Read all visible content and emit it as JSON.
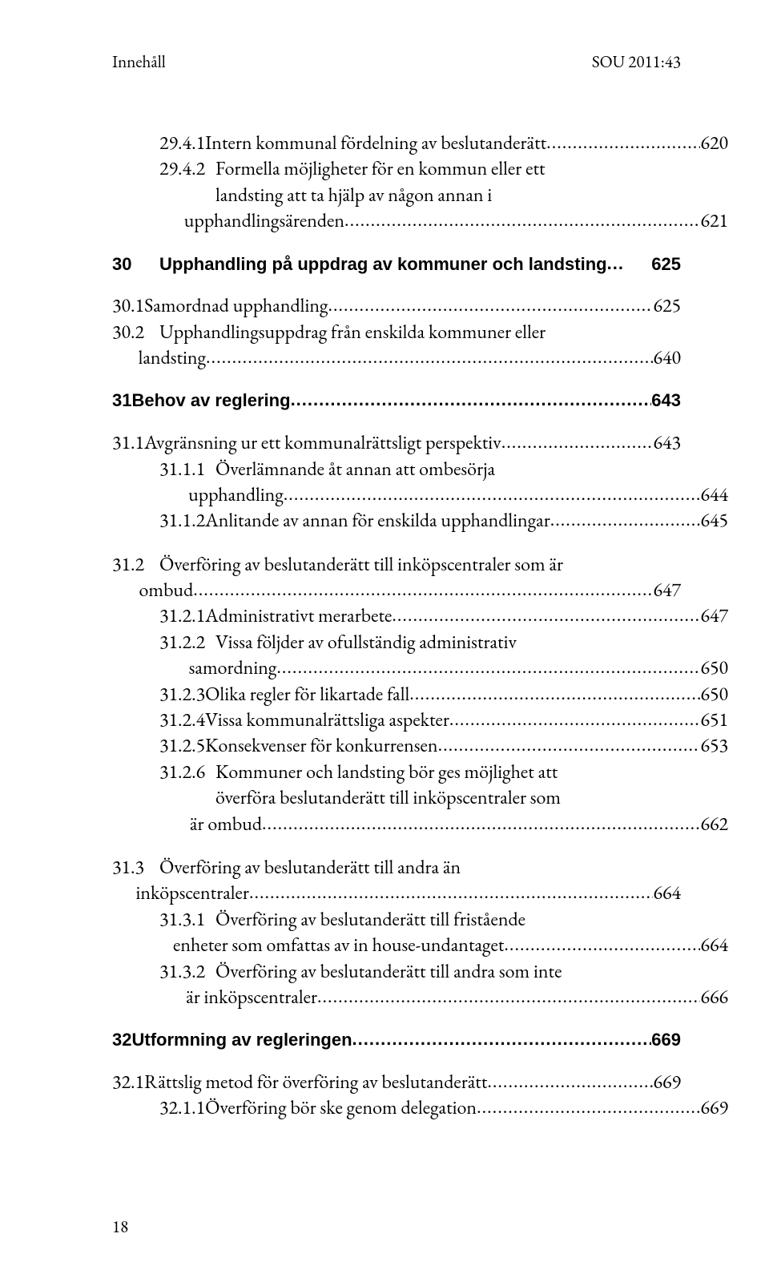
{
  "running_head": {
    "left": "Innehåll",
    "right": "SOU 2011:43"
  },
  "footer_page": "18",
  "leader_dots": "...........................................................................................................................................................",
  "entries": [
    {
      "block": true,
      "rows": [
        {
          "indent": 2,
          "mode": "hanging2",
          "num": "29.4.1",
          "text": "Intern kommunal fördelning av beslutanderätt",
          "page": "620"
        },
        {
          "indent": 2,
          "mode": "hanging2",
          "num": "29.4.2",
          "multi": [
            "Formella möjligheter för en kommun eller ett",
            "landsting att ta hjälp av någon annan i"
          ],
          "last": "upphandlingsärenden",
          "page": "621"
        }
      ]
    },
    {
      "block": true,
      "rows": [
        {
          "indent": 0,
          "bold": true,
          "mode": "hanging",
          "num": "30",
          "text": "Upphandling på uppdrag av kommuner och landsting",
          "page": "625",
          "leader": "..."
        }
      ]
    },
    {
      "block": true,
      "rows": [
        {
          "indent": 0,
          "mode": "hanging",
          "num": "30.1",
          "text": "Samordnad upphandling",
          "page": "625"
        },
        {
          "indent": 0,
          "mode": "hanging",
          "num": "30.2",
          "multi": [
            "Upphandlingsuppdrag från enskilda kommuner eller"
          ],
          "last": "landsting",
          "page": "640"
        }
      ]
    },
    {
      "block": true,
      "rows": [
        {
          "indent": 0,
          "bold": true,
          "mode": "hanging",
          "num": "31",
          "text": "Behov av reglering",
          "page": "643"
        }
      ]
    },
    {
      "block": true,
      "rows": [
        {
          "indent": 0,
          "mode": "hanging",
          "num": "31.1",
          "text": "Avgränsning ur ett kommunalrättsligt perspektiv",
          "page": "643"
        },
        {
          "indent": 2,
          "mode": "hanging2",
          "num": "31.1.1",
          "multi": [
            "Överlämnande åt annan att ombesörja"
          ],
          "last": "upphandling",
          "page": "644"
        },
        {
          "indent": 2,
          "mode": "hanging2",
          "num": "31.1.2",
          "text": "Anlitande av annan för enskilda upphandlingar",
          "page": "645"
        }
      ]
    },
    {
      "block": true,
      "rows": [
        {
          "indent": 0,
          "mode": "hanging",
          "num": "31.2",
          "multi": [
            "Överföring av beslutanderätt till inköpscentraler som är"
          ],
          "last": "ombud",
          "page": "647"
        },
        {
          "indent": 2,
          "mode": "hanging2",
          "num": "31.2.1",
          "text": "Administrativt merarbete",
          "page": "647"
        },
        {
          "indent": 2,
          "mode": "hanging2",
          "num": "31.2.2",
          "multi": [
            "Vissa följder av ofullständig administrativ"
          ],
          "last": "samordning",
          "page": "650"
        },
        {
          "indent": 2,
          "mode": "hanging2",
          "num": "31.2.3",
          "text": "Olika regler för likartade fall",
          "page": "650"
        },
        {
          "indent": 2,
          "mode": "hanging2",
          "num": "31.2.4",
          "text": "Vissa kommunalrättsliga aspekter",
          "page": "651"
        },
        {
          "indent": 2,
          "mode": "hanging2",
          "num": "31.2.5",
          "text": "Konsekvenser för konkurrensen",
          "page": "653"
        },
        {
          "indent": 2,
          "mode": "hanging2",
          "num": "31.2.6",
          "multi": [
            "Kommuner och landsting bör ges möjlighet att",
            "överföra beslutanderätt till inköpscentraler som"
          ],
          "last": "är ombud",
          "page": "662"
        }
      ]
    },
    {
      "block": true,
      "rows": [
        {
          "indent": 0,
          "mode": "hanging",
          "num": "31.3",
          "multi": [
            "Överföring av beslutanderätt till andra än"
          ],
          "last": "inköpscentraler",
          "page": "664"
        },
        {
          "indent": 2,
          "mode": "hanging2",
          "num": "31.3.1",
          "multi": [
            "Överföring av beslutanderätt till fristående"
          ],
          "last": "enheter som omfattas av in house-undantaget",
          "page": "664"
        },
        {
          "indent": 2,
          "mode": "hanging2",
          "num": "31.3.2",
          "multi": [
            "Överföring av beslutanderätt till andra som inte"
          ],
          "last": "är inköpscentraler",
          "page": "666"
        }
      ]
    },
    {
      "block": true,
      "rows": [
        {
          "indent": 0,
          "bold": true,
          "mode": "hanging",
          "num": "32",
          "text": "Utformning av regleringen",
          "page": "669"
        }
      ]
    },
    {
      "block": true,
      "rows": [
        {
          "indent": 0,
          "mode": "hanging",
          "num": "32.1",
          "text": "Rättslig metod för överföring av beslutanderätt",
          "page": "669"
        },
        {
          "indent": 2,
          "mode": "hanging2",
          "num": "32.1.1",
          "text": "Överföring bör ske genom delegation",
          "page": "669"
        }
      ]
    }
  ]
}
